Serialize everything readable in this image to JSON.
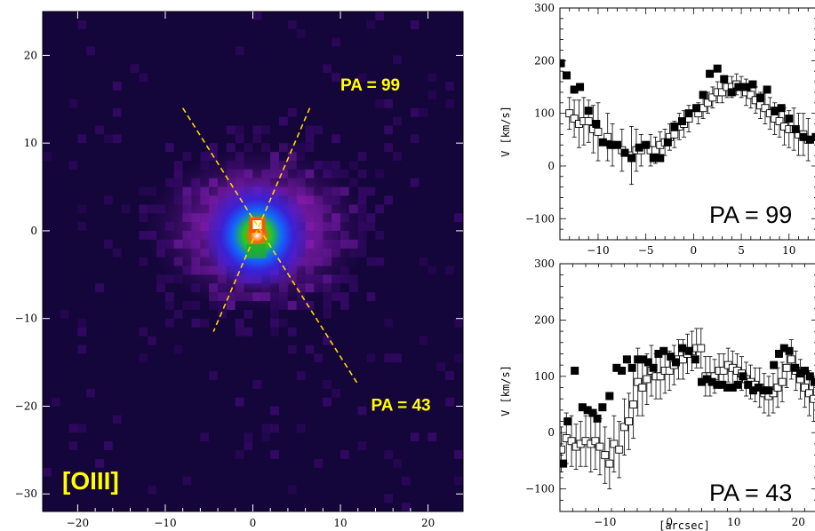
{
  "chart_data": [
    {
      "type": "heatmap",
      "panel": "image",
      "label": "[OIII]",
      "xlim": [
        -24,
        24
      ],
      "ylim": [
        -32,
        25
      ],
      "x_ticks": [
        -20,
        -10,
        0,
        10,
        20
      ],
      "y_ticks": [
        20,
        10,
        0,
        -10,
        -20,
        -30
      ],
      "x_tick_labels": [
        "−20",
        "−10",
        "0",
        "10",
        "20"
      ],
      "y_tick_labels": [
        "20",
        "10",
        "0",
        "−10",
        "−20",
        "−30"
      ],
      "background_color": "#14053a",
      "colormap": [
        "#14053a",
        "#3a0a6e",
        "#6a1a9e",
        "#9a1ab8",
        "#3333ff",
        "#00aaff",
        "#22cc22",
        "#ffaa00",
        "#ff4400",
        "#ffffff"
      ],
      "annotations": [
        {
          "text": "PA = 99",
          "x": 10,
          "y": 16
        },
        {
          "text": "PA = 43",
          "x": 13.5,
          "y": -20.5
        }
      ],
      "slit_lines": [
        {
          "name": "PA = 99",
          "x1": 6.5,
          "y1": 14.0,
          "x2": -4.5,
          "y2": -11.5
        },
        {
          "name": "PA = 43",
          "x1": -8.0,
          "y1": 14.0,
          "x2": 12.0,
          "y2": -17.5
        }
      ],
      "line_color": "#ffd700",
      "emission_peak": {
        "x": 0.5,
        "y": 0.7
      }
    },
    {
      "type": "scatter",
      "panel": "top-right",
      "annotation": "PA = 99",
      "ylabel": "V [km/s]",
      "xlim": [
        -14,
        13
      ],
      "ylim": [
        -140,
        300
      ],
      "x_ticks": [
        -10,
        -5,
        0,
        5,
        10
      ],
      "x_tick_labels": [
        "−10",
        "−5",
        "0",
        "5",
        "10"
      ],
      "y_ticks": [
        -100,
        0,
        100,
        200,
        300
      ],
      "y_tick_labels": [
        "−100",
        "0",
        "100",
        "200",
        "300"
      ],
      "series": [
        {
          "marker": "filled-square",
          "points": [
            [
              -13.9,
              195
            ],
            [
              -13.3,
              172
            ],
            [
              -12.5,
              145
            ],
            [
              -11.9,
              150
            ],
            [
              -11.0,
              105
            ],
            [
              -10.2,
              80
            ],
            [
              -9.5,
              45
            ],
            [
              -8.7,
              40
            ],
            [
              -8.0,
              40
            ],
            [
              -7.2,
              25
            ],
            [
              -6.5,
              15
            ],
            [
              -5.7,
              35
            ],
            [
              -5.0,
              40
            ],
            [
              -4.2,
              15
            ],
            [
              -3.5,
              15
            ],
            [
              -2.7,
              45
            ],
            [
              -2.0,
              75
            ],
            [
              -1.2,
              85
            ],
            [
              -0.5,
              100
            ],
            [
              0.3,
              110
            ],
            [
              1.0,
              135
            ],
            [
              1.7,
              175
            ],
            [
              2.5,
              185
            ],
            [
              3.2,
              165
            ],
            [
              4.0,
              140
            ],
            [
              4.7,
              150
            ],
            [
              5.5,
              150
            ],
            [
              6.2,
              155
            ],
            [
              7.0,
              130
            ],
            [
              7.7,
              145
            ],
            [
              8.5,
              105
            ],
            [
              9.2,
              110
            ],
            [
              10.0,
              90
            ],
            [
              10.7,
              70
            ],
            [
              11.5,
              55
            ],
            [
              12.2,
              50
            ],
            [
              12.8,
              55
            ]
          ]
        },
        {
          "marker": "open-square-errorbar",
          "points": [
            [
              -13.0,
              100,
              30
            ],
            [
              -12.5,
              90,
              35
            ],
            [
              -12.0,
              80,
              45
            ],
            [
              -11.5,
              85,
              45
            ],
            [
              -11.0,
              85,
              40
            ],
            [
              -10.5,
              70,
              45
            ],
            [
              -10.0,
              65,
              55
            ],
            [
              -9.0,
              55,
              45
            ],
            [
              -8.5,
              40,
              40
            ],
            [
              -7.5,
              30,
              40
            ],
            [
              -6.5,
              20,
              55
            ],
            [
              -6.0,
              30,
              40
            ],
            [
              -5.5,
              30,
              30
            ],
            [
              -4.5,
              30,
              30
            ],
            [
              -4.0,
              30,
              25
            ],
            [
              -3.5,
              40,
              25
            ],
            [
              -3.0,
              45,
              25
            ],
            [
              -2.5,
              55,
              25
            ],
            [
              -2.0,
              60,
              25
            ],
            [
              -1.5,
              75,
              25
            ],
            [
              -1.0,
              80,
              25
            ],
            [
              -0.5,
              90,
              25
            ],
            [
              0.5,
              100,
              20
            ],
            [
              1.0,
              110,
              20
            ],
            [
              1.5,
              120,
              20
            ],
            [
              2.0,
              130,
              20
            ],
            [
              2.5,
              140,
              20
            ],
            [
              3.0,
              140,
              20
            ],
            [
              3.5,
              150,
              20
            ],
            [
              4.0,
              150,
              20
            ],
            [
              4.5,
              155,
              20
            ],
            [
              5.0,
              150,
              20
            ],
            [
              5.5,
              140,
              25
            ],
            [
              6.0,
              135,
              25
            ],
            [
              6.5,
              125,
              25
            ],
            [
              7.0,
              115,
              25
            ],
            [
              7.5,
              110,
              30
            ],
            [
              8.0,
              100,
              30
            ],
            [
              8.5,
              90,
              30
            ],
            [
              9.0,
              85,
              30
            ],
            [
              9.5,
              75,
              35
            ],
            [
              10.0,
              70,
              35
            ],
            [
              10.5,
              70,
              40
            ],
            [
              11.0,
              60,
              40
            ],
            [
              11.5,
              60,
              40
            ],
            [
              12.0,
              50,
              40
            ]
          ]
        }
      ]
    },
    {
      "type": "scatter",
      "panel": "bottom-right",
      "annotation": "PA = 43",
      "xlabel": "[arcsec]",
      "ylabel": "V [km/s]",
      "xlim": [
        -17,
        23
      ],
      "ylim": [
        -140,
        300
      ],
      "x_ticks": [
        -10,
        0,
        10,
        20
      ],
      "x_tick_labels": [
        "−10",
        "0",
        "10",
        "20"
      ],
      "y_ticks": [
        -100,
        0,
        100,
        200,
        300
      ],
      "y_tick_labels": [
        "−100",
        "0",
        "100",
        "200",
        "300"
      ],
      "series": [
        {
          "marker": "filled-square",
          "points": [
            [
              -16.5,
              -55
            ],
            [
              -15.8,
              20
            ],
            [
              -14.7,
              110
            ],
            [
              -13.5,
              45
            ],
            [
              -12.7,
              40
            ],
            [
              -11.9,
              35
            ],
            [
              -11.2,
              25
            ],
            [
              -10.4,
              45
            ],
            [
              -9.3,
              65
            ],
            [
              -8.2,
              115
            ],
            [
              -7.4,
              110
            ],
            [
              -6.6,
              130
            ],
            [
              -5.8,
              115
            ],
            [
              -4.9,
              130
            ],
            [
              -4.1,
              130
            ],
            [
              -3.3,
              125
            ],
            [
              -2.5,
              115
            ],
            [
              -1.7,
              140
            ],
            [
              -0.9,
              145
            ],
            [
              0.2,
              135
            ],
            [
              1.0,
              125
            ],
            [
              2.0,
              150
            ],
            [
              3.0,
              145
            ],
            [
              4.0,
              130
            ],
            [
              5.0,
              90
            ],
            [
              5.8,
              95
            ],
            [
              6.6,
              90
            ],
            [
              7.4,
              85
            ],
            [
              8.2,
              85
            ],
            [
              9.0,
              80
            ],
            [
              9.8,
              80
            ],
            [
              10.6,
              85
            ],
            [
              11.4,
              100
            ],
            [
              12.2,
              85
            ],
            [
              13.0,
              75
            ],
            [
              13.8,
              80
            ],
            [
              14.6,
              75
            ],
            [
              15.4,
              75
            ],
            [
              16.2,
              120
            ],
            [
              17.0,
              140
            ],
            [
              17.8,
              150
            ],
            [
              18.6,
              145
            ],
            [
              19.5,
              115
            ],
            [
              20.3,
              105
            ],
            [
              21.0,
              110
            ],
            [
              21.8,
              100
            ],
            [
              22.5,
              90
            ]
          ]
        },
        {
          "marker": "open-square-errorbar",
          "points": [
            [
              -16.8,
              -30,
              40
            ],
            [
              -16.0,
              -10,
              45
            ],
            [
              -15.2,
              -15,
              45
            ],
            [
              -14.5,
              -25,
              40
            ],
            [
              -13.8,
              -20,
              40
            ],
            [
              -13.0,
              -15,
              45
            ],
            [
              -12.2,
              -20,
              50
            ],
            [
              -11.5,
              -15,
              50
            ],
            [
              -10.8,
              -25,
              50
            ],
            [
              -10.0,
              -40,
              50
            ],
            [
              -9.3,
              -55,
              45
            ],
            [
              -8.6,
              -20,
              50
            ],
            [
              -7.8,
              -30,
              50
            ],
            [
              -7.0,
              10,
              50
            ],
            [
              -6.3,
              20,
              50
            ],
            [
              -5.6,
              50,
              60
            ],
            [
              -4.9,
              90,
              60
            ],
            [
              -4.2,
              80,
              50
            ],
            [
              -3.5,
              95,
              45
            ],
            [
              -2.8,
              110,
              45
            ],
            [
              -2.1,
              100,
              40
            ],
            [
              -1.4,
              100,
              40
            ],
            [
              -0.7,
              110,
              40
            ],
            [
              0.0,
              110,
              35
            ],
            [
              0.7,
              120,
              35
            ],
            [
              1.4,
              130,
              35
            ],
            [
              2.1,
              130,
              35
            ],
            [
              2.8,
              140,
              35
            ],
            [
              3.5,
              145,
              35
            ],
            [
              4.2,
              150,
              35
            ],
            [
              4.9,
              150,
              35
            ],
            [
              5.6,
              100,
              35
            ],
            [
              6.3,
              100,
              35
            ],
            [
              7.0,
              100,
              30
            ],
            [
              7.7,
              110,
              30
            ],
            [
              8.4,
              110,
              30
            ],
            [
              9.1,
              120,
              30
            ],
            [
              9.8,
              115,
              30
            ],
            [
              10.5,
              110,
              30
            ],
            [
              11.2,
              105,
              30
            ],
            [
              11.9,
              95,
              30
            ],
            [
              12.6,
              90,
              30
            ],
            [
              13.3,
              85,
              30
            ],
            [
              14.0,
              80,
              35
            ],
            [
              14.7,
              70,
              35
            ],
            [
              15.4,
              65,
              35
            ],
            [
              16.1,
              70,
              35
            ],
            [
              16.8,
              80,
              35
            ],
            [
              17.5,
              90,
              35
            ],
            [
              18.2,
              115,
              35
            ],
            [
              18.9,
              130,
              35
            ],
            [
              19.6,
              110,
              35
            ],
            [
              20.3,
              95,
              35
            ],
            [
              21.0,
              80,
              35
            ],
            [
              21.7,
              70,
              40
            ],
            [
              22.4,
              60,
              40
            ]
          ]
        }
      ]
    }
  ]
}
